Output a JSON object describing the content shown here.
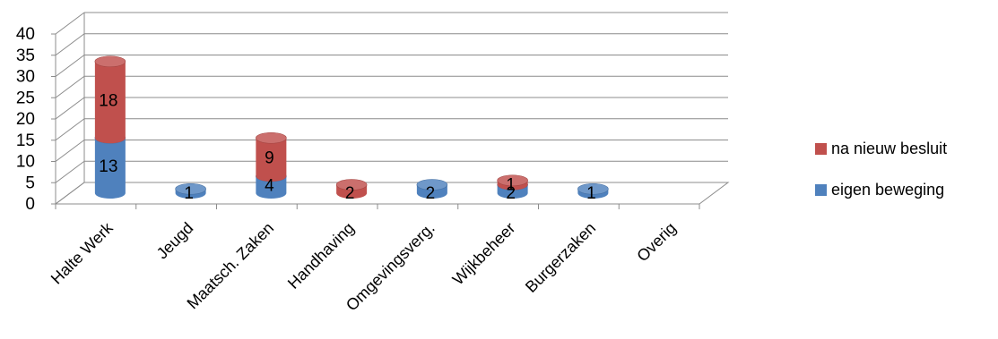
{
  "chart_data": {
    "type": "bar",
    "stacked": true,
    "three_d": true,
    "categories": [
      "Halte Werk",
      "Jeugd",
      "Maatsch. Zaken",
      "Handhaving",
      "Omgevingsverg.",
      "Wijkbeheer",
      "Burgerzaken",
      "Overig"
    ],
    "series": [
      {
        "name": "eigen beweging",
        "color": "#4f81bd",
        "values": [
          13,
          1,
          4,
          0,
          2,
          2,
          1,
          0
        ],
        "labels": [
          "13",
          "1",
          "4",
          "",
          "2",
          "2",
          "1",
          ""
        ]
      },
      {
        "name": "na nieuw besluit",
        "color": "#c0504d",
        "values": [
          18,
          0,
          9,
          2,
          0,
          1,
          0,
          0
        ],
        "labels": [
          "18",
          "",
          "9",
          "2",
          "",
          "1",
          "",
          ""
        ]
      }
    ],
    "ylim": [
      0,
      40
    ],
    "yticks": [
      "0",
      "5",
      "10",
      "15",
      "20",
      "25",
      "30",
      "35",
      "40"
    ],
    "grid": true,
    "legend_position": "right",
    "title": "",
    "xlabel": "",
    "ylabel": ""
  }
}
